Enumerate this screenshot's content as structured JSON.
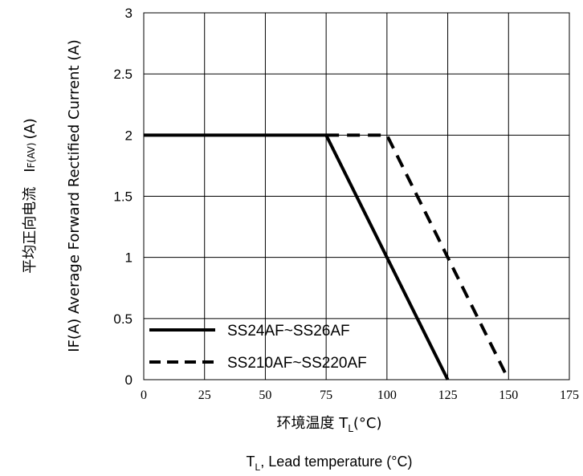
{
  "chart_data": {
    "type": "line",
    "xlabel_cn": "环境温度 T",
    "xlabel_cn_sub": "L",
    "xlabel_cn_unit": "(°C)",
    "xlabel_en_main": "T",
    "xlabel_en_sub": "L",
    "xlabel_en_rest": ", Lead temperature (°C)",
    "ylabel_prefix": "IF(A)  Average Forward Rectified Current (A)",
    "ylabel_cn": "平均正向电流",
    "ylabel_sym": "I",
    "ylabel_sym_sub": "F(AV)",
    "ylabel_unit": "(A)",
    "xlim": [
      0,
      175
    ],
    "ylim": [
      0,
      3
    ],
    "x_ticks": [
      "0",
      "25",
      "50",
      "75",
      "100",
      "125",
      "150",
      "175"
    ],
    "y_ticks": [
      "0",
      "0.5",
      "1",
      "1.5",
      "2",
      "2.5",
      "3"
    ],
    "grid": true,
    "legend_position": "bottom-left",
    "series": [
      {
        "name": "SS24AF~SS26AF",
        "style": "solid",
        "color": "#000000",
        "x": [
          0,
          75,
          125
        ],
        "y": [
          2,
          2,
          0
        ]
      },
      {
        "name": "SS210AF~SS220AF",
        "style": "dashed",
        "color": "#000000",
        "x": [
          75,
          100,
          150
        ],
        "y": [
          2,
          2,
          0
        ]
      }
    ]
  }
}
